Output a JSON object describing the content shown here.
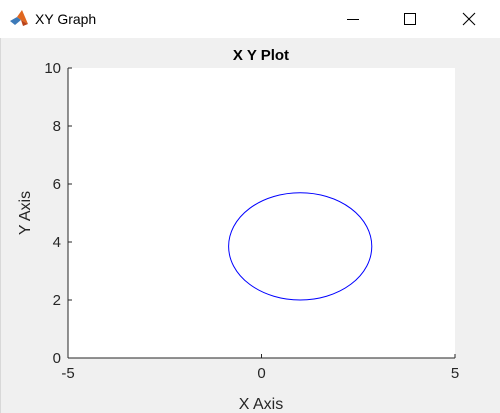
{
  "window": {
    "title": "XY Graph",
    "icon": "matlab-logo-icon",
    "controls": [
      "minimize-icon",
      "maximize-icon",
      "close-icon"
    ]
  },
  "chart_data": {
    "type": "line",
    "title": "X Y Plot",
    "xlabel": "X Axis",
    "ylabel": "Y Axis",
    "xlim": [
      -5,
      5
    ],
    "ylim": [
      0,
      10
    ],
    "xticks": [
      -5,
      0,
      5
    ],
    "yticks": [
      0,
      2,
      4,
      6,
      8,
      10
    ],
    "grid": false,
    "series": [
      {
        "color": "#0000ff",
        "shape": "ellipse",
        "center": [
          1.0,
          3.85
        ],
        "x_radius": 1.85,
        "y_radius": 1.85,
        "x": [
          2.85,
          2.72,
          2.31,
          1.73,
          1.0,
          0.27,
          -0.31,
          -0.72,
          -0.85,
          -0.72,
          -0.31,
          0.27,
          1.0,
          1.73,
          2.31,
          2.72,
          2.85
        ],
        "y": [
          3.85,
          4.56,
          5.16,
          5.56,
          5.7,
          5.56,
          5.16,
          4.56,
          3.85,
          3.14,
          2.54,
          2.14,
          2.0,
          2.14,
          2.54,
          3.14,
          3.85
        ]
      }
    ]
  }
}
